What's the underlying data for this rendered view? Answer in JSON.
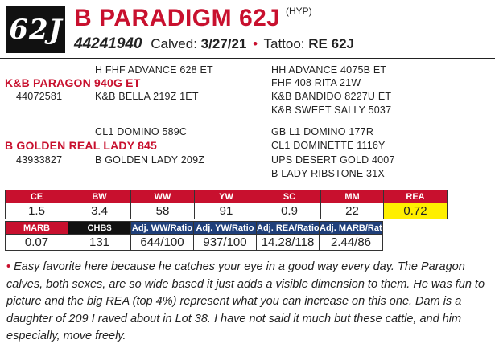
{
  "header": {
    "lot": "62J",
    "name": "B PARADIGM 62J",
    "hyp": "(HYP)",
    "registration": "44241940",
    "calved_label": "Calved:",
    "calved": "3/27/21",
    "separator": "•",
    "tattoo_label": "Tattoo:",
    "tattoo": "RE 62J"
  },
  "pedigree": {
    "sire_sire": "H FHF ADVANCE 628 ET",
    "sire_sire_sire": "HH ADVANCE 4075B ET",
    "sire_sire_dam": "FHF 408 RITA 21W",
    "sire": "K&B PARAGON 940G ET",
    "sire_reg": "44072581",
    "sire_dam": "K&B BELLA 219Z 1ET",
    "sire_dam_sire": "K&B BANDIDO 8227U ET",
    "sire_dam_dam": "K&B SWEET SALLY 5037",
    "dam_sire": "CL1 DOMINO 589C",
    "dam_sire_sire": "GB L1 DOMINO 177R",
    "dam_sire_dam": "CL1 DOMINETTE 1116Y",
    "dam": "B GOLDEN REAL LADY 845",
    "dam_reg": "43933827",
    "dam_dam": "B GOLDEN LADY 209Z",
    "dam_dam_sire": "UPS DESERT GOLD 4007",
    "dam_dam_dam": "B LADY RIBSTONE 31X"
  },
  "epd_row1": {
    "headers": [
      "CE",
      "BW",
      "WW",
      "YW",
      "SC",
      "MM",
      "REA"
    ],
    "values": [
      "1.5",
      "3.4",
      "58",
      "91",
      "0.9",
      "22",
      "0.72"
    ]
  },
  "epd_row2": {
    "headers": [
      "MARB",
      "CHB$",
      "Adj. WW/Ratio",
      "Adj. YW/Ratio",
      "Adj. REA/Ratio",
      "Adj. MARB/Ratio"
    ],
    "values": [
      "0.07",
      "131",
      "644/100",
      "937/100",
      "14.28/118",
      "2.44/86"
    ]
  },
  "comment": {
    "bullet": "•",
    "text": "Easy favorite here because he catches your eye in a good way every day. The Paragon calves, both sexes, are so wide based it just adds a visible dimension to them. He was fun to picture and the big REA (top 4%) represent what you can increase on this one. Dam is a daughter of 209 I raved about in Lot 38. I have not said it much but these cattle, and him especially, move freely."
  },
  "colors": {
    "accent_red": "#c8102e",
    "highlight_yellow": "#ffef00",
    "header_blue": "#1f3f7a",
    "header_black": "#111111"
  }
}
